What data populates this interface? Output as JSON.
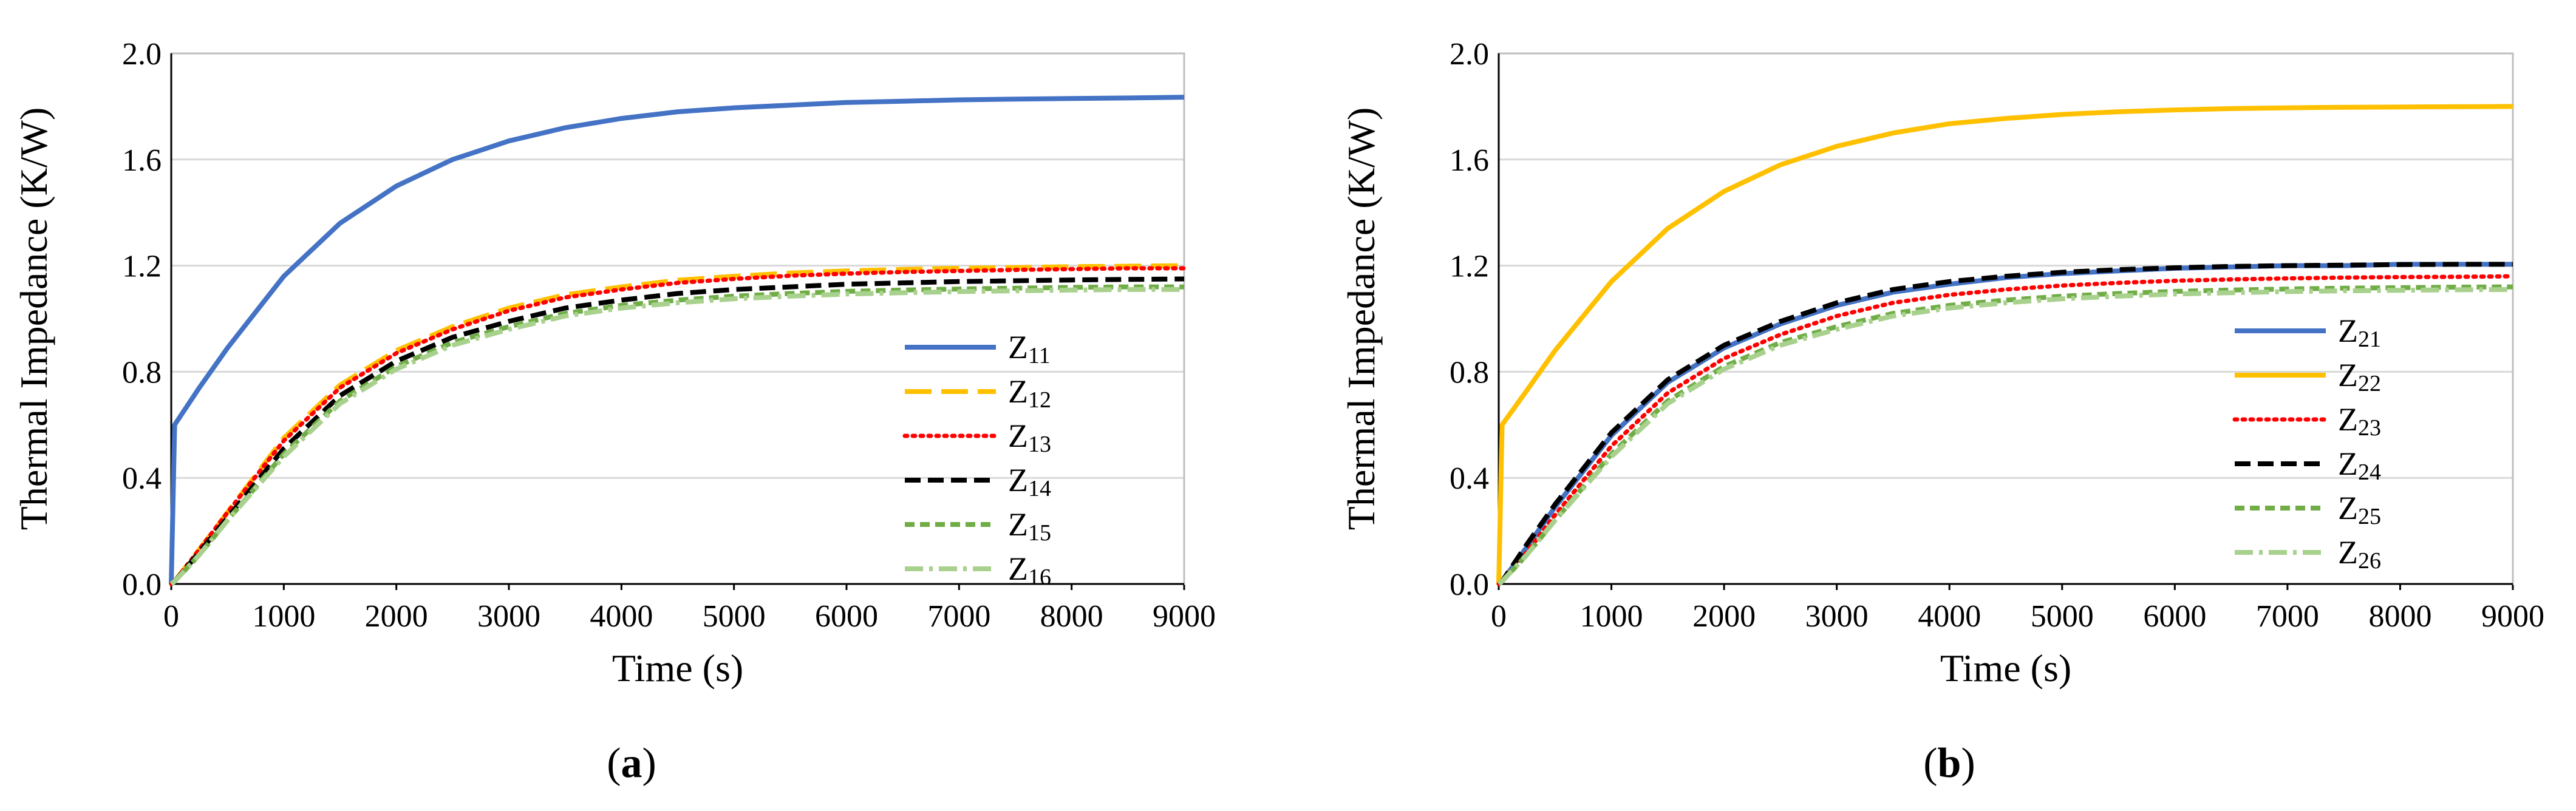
{
  "colors": {
    "blue": "#4472C4",
    "orange": "#FFC000",
    "red": "#FF0000",
    "black": "#000000",
    "green": "#70AD47",
    "lightgreen": "#A9D18E",
    "gridline": "#D9D9D9",
    "axis": "#000000"
  },
  "chart_data": [
    {
      "type": "line",
      "panel_label": "a",
      "title": "",
      "xlabel": "Time (s)",
      "ylabel": "Thermal Impedance (K/W)",
      "xlim": [
        0,
        9000
      ],
      "ylim": [
        0.0,
        2.0
      ],
      "x_ticks": [
        "0",
        "1000",
        "2000",
        "3000",
        "4000",
        "5000",
        "6000",
        "7000",
        "8000",
        "9000"
      ],
      "y_ticks": [
        "0.0",
        "0.4",
        "0.8",
        "1.2",
        "1.6",
        "2.0"
      ],
      "grid": "horizontal",
      "legend_position": "bottom-right",
      "x": [
        0,
        30,
        250,
        500,
        1000,
        1500,
        2000,
        2500,
        3000,
        3500,
        4000,
        4500,
        5000,
        5500,
        6000,
        6500,
        7000,
        7500,
        8000,
        8500,
        9000
      ],
      "series": [
        {
          "name": "Z",
          "subscript": "11",
          "style": "solid",
          "color": "blue",
          "values": [
            0.0,
            0.6,
            0.74,
            0.89,
            1.16,
            1.36,
            1.5,
            1.6,
            1.67,
            1.72,
            1.755,
            1.78,
            1.795,
            1.805,
            1.815,
            1.82,
            1.825,
            1.828,
            1.83,
            1.832,
            1.835
          ]
        },
        {
          "name": "Z",
          "subscript": "12",
          "style": "longdash",
          "color": "orange",
          "values": [
            0.0,
            0.01,
            0.13,
            0.27,
            0.55,
            0.75,
            0.88,
            0.97,
            1.04,
            1.09,
            1.12,
            1.145,
            1.16,
            1.172,
            1.18,
            1.186,
            1.19,
            1.193,
            1.196,
            1.198,
            1.2
          ]
        },
        {
          "name": "Z",
          "subscript": "13",
          "style": "dotted",
          "color": "red",
          "values": [
            0.0,
            0.01,
            0.13,
            0.27,
            0.54,
            0.74,
            0.87,
            0.96,
            1.03,
            1.08,
            1.11,
            1.135,
            1.15,
            1.162,
            1.17,
            1.176,
            1.18,
            1.184,
            1.187,
            1.19,
            1.19
          ]
        },
        {
          "name": "Z",
          "subscript": "14",
          "style": "dash",
          "color": "black",
          "values": [
            0.0,
            0.01,
            0.12,
            0.25,
            0.51,
            0.71,
            0.84,
            0.93,
            0.99,
            1.04,
            1.07,
            1.095,
            1.11,
            1.12,
            1.13,
            1.135,
            1.14,
            1.143,
            1.146,
            1.148,
            1.15
          ]
        },
        {
          "name": "Z",
          "subscript": "15",
          "style": "shortdash",
          "color": "green",
          "values": [
            0.0,
            0.01,
            0.11,
            0.24,
            0.49,
            0.69,
            0.82,
            0.91,
            0.97,
            1.02,
            1.05,
            1.07,
            1.085,
            1.095,
            1.103,
            1.108,
            1.112,
            1.115,
            1.118,
            1.12,
            1.12
          ]
        },
        {
          "name": "Z",
          "subscript": "16",
          "style": "dashdot",
          "color": "lightgreen",
          "values": [
            0.0,
            0.01,
            0.11,
            0.24,
            0.48,
            0.68,
            0.81,
            0.9,
            0.96,
            1.01,
            1.04,
            1.06,
            1.075,
            1.085,
            1.093,
            1.098,
            1.102,
            1.105,
            1.108,
            1.11,
            1.11
          ]
        }
      ]
    },
    {
      "type": "line",
      "panel_label": "b",
      "title": "",
      "xlabel": "Time (s)",
      "ylabel": "Thermal Impedance (K/W)",
      "xlim": [
        0,
        9000
      ],
      "ylim": [
        0.0,
        2.0
      ],
      "x_ticks": [
        "0",
        "1000",
        "2000",
        "3000",
        "4000",
        "5000",
        "6000",
        "7000",
        "8000",
        "9000"
      ],
      "y_ticks": [
        "0.0",
        "0.4",
        "0.8",
        "1.2",
        "1.6",
        "2.0"
      ],
      "grid": "horizontal",
      "legend_position": "bottom-right",
      "x": [
        0,
        30,
        250,
        500,
        1000,
        1500,
        2000,
        2500,
        3000,
        3500,
        4000,
        4500,
        5000,
        5500,
        6000,
        6500,
        7000,
        7500,
        8000,
        8500,
        9000
      ],
      "series": [
        {
          "name": "Z",
          "subscript": "21",
          "style": "solid",
          "color": "blue",
          "values": [
            0.0,
            0.01,
            0.14,
            0.29,
            0.56,
            0.76,
            0.89,
            0.98,
            1.05,
            1.1,
            1.13,
            1.155,
            1.17,
            1.18,
            1.19,
            1.195,
            1.2,
            1.2,
            1.205,
            1.205,
            1.205
          ]
        },
        {
          "name": "Z",
          "subscript": "22",
          "style": "solid",
          "color": "orange",
          "values": [
            0.0,
            0.6,
            0.73,
            0.88,
            1.14,
            1.34,
            1.48,
            1.58,
            1.65,
            1.7,
            1.735,
            1.755,
            1.77,
            1.78,
            1.787,
            1.792,
            1.795,
            1.797,
            1.798,
            1.799,
            1.8
          ]
        },
        {
          "name": "Z",
          "subscript": "23",
          "style": "dotted",
          "color": "red",
          "values": [
            0.0,
            0.01,
            0.12,
            0.26,
            0.52,
            0.72,
            0.85,
            0.94,
            1.01,
            1.06,
            1.09,
            1.11,
            1.125,
            1.135,
            1.143,
            1.148,
            1.152,
            1.155,
            1.157,
            1.158,
            1.16
          ]
        },
        {
          "name": "Z",
          "subscript": "24",
          "style": "dash",
          "color": "black",
          "values": [
            0.0,
            0.01,
            0.15,
            0.3,
            0.57,
            0.77,
            0.9,
            0.99,
            1.06,
            1.11,
            1.14,
            1.16,
            1.175,
            1.185,
            1.192,
            1.197,
            1.2,
            1.202,
            1.204,
            1.205,
            1.205
          ]
        },
        {
          "name": "Z",
          "subscript": "25",
          "style": "shortdash",
          "color": "green",
          "values": [
            0.0,
            0.01,
            0.11,
            0.24,
            0.49,
            0.69,
            0.82,
            0.91,
            0.97,
            1.02,
            1.05,
            1.07,
            1.085,
            1.095,
            1.103,
            1.108,
            1.112,
            1.115,
            1.117,
            1.119,
            1.12
          ]
        },
        {
          "name": "Z",
          "subscript": "26",
          "style": "dashdot",
          "color": "lightgreen",
          "values": [
            0.0,
            0.01,
            0.11,
            0.24,
            0.48,
            0.68,
            0.81,
            0.9,
            0.96,
            1.01,
            1.04,
            1.06,
            1.075,
            1.085,
            1.093,
            1.098,
            1.102,
            1.105,
            1.107,
            1.109,
            1.11
          ]
        }
      ]
    }
  ]
}
